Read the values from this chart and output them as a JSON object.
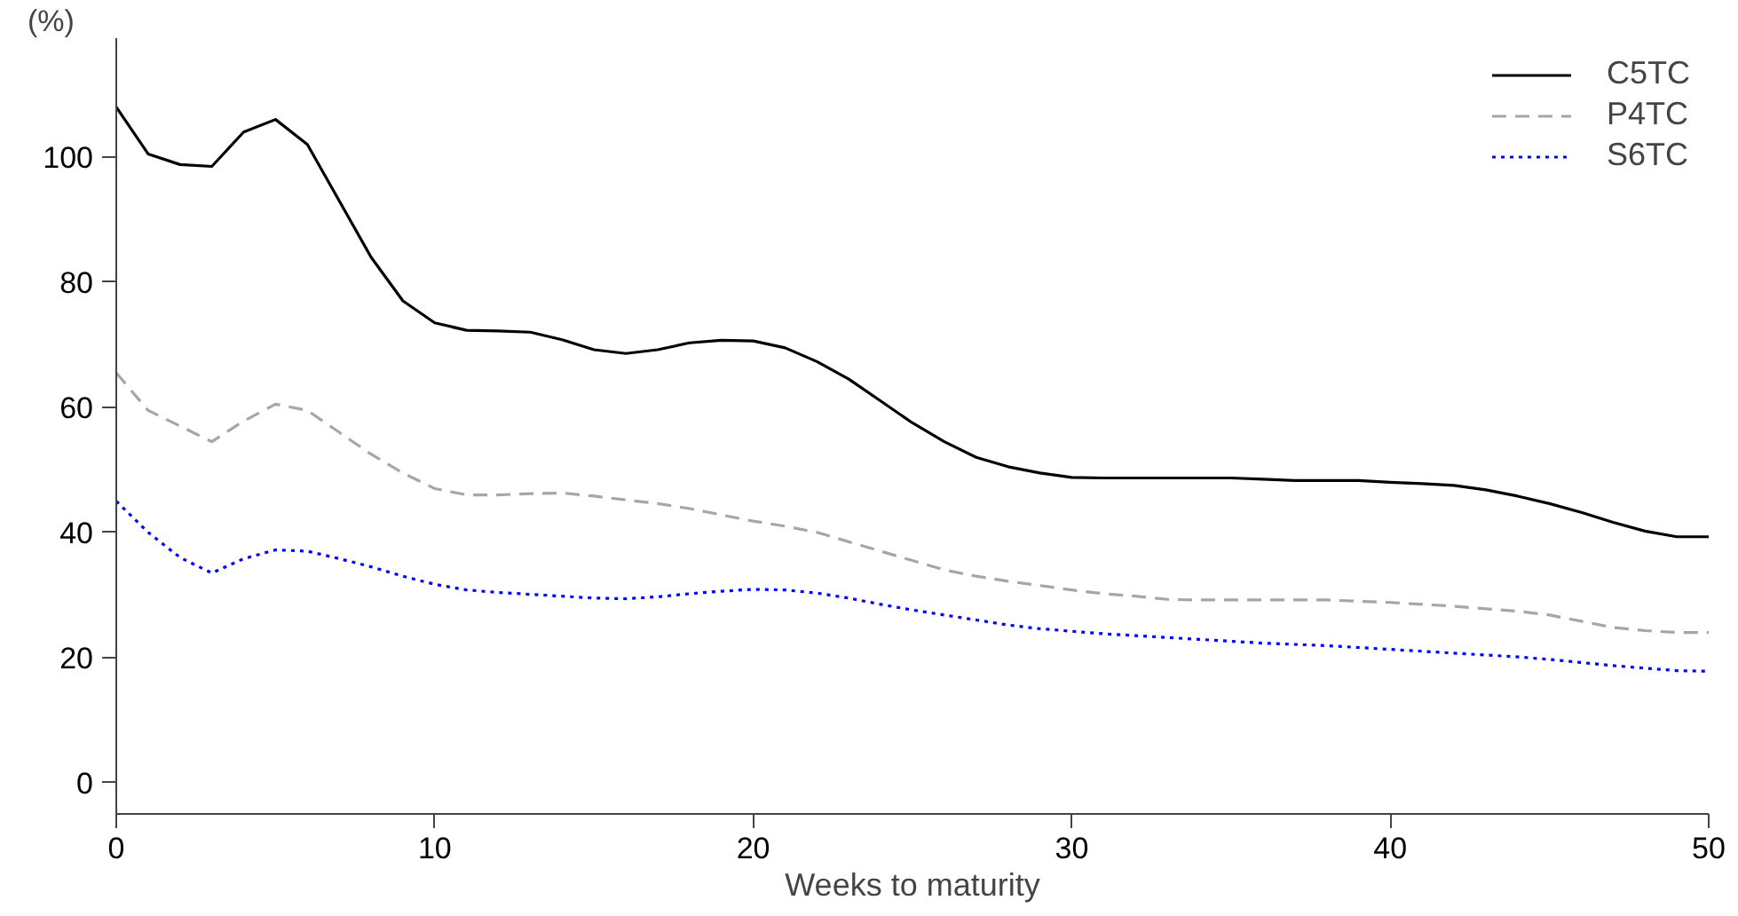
{
  "chart_data": {
    "type": "line",
    "xlabel": "Weeks to maturity",
    "ylabel": "(%)",
    "x": [
      0,
      1,
      2,
      3,
      4,
      5,
      6,
      7,
      8,
      9,
      10,
      11,
      12,
      13,
      14,
      15,
      16,
      17,
      18,
      19,
      20,
      21,
      22,
      23,
      24,
      25,
      26,
      27,
      28,
      29,
      30,
      31,
      32,
      33,
      34,
      35,
      36,
      37,
      38,
      39,
      40,
      41,
      42,
      43,
      44,
      45,
      46,
      47,
      48,
      49,
      50
    ],
    "series": [
      {
        "name": "C5TC",
        "color": "#000000",
        "line_style": "solid",
        "values": [
          108,
          100.5,
          98.8,
          98.5,
          104,
          106,
          102,
          93,
          84,
          77,
          73.5,
          72.3,
          72.2,
          72,
          70.8,
          69.2,
          68.6,
          69.2,
          70.3,
          70.7,
          70.6,
          69.5,
          67.3,
          64.5,
          61,
          57.5,
          54.5,
          52,
          50.5,
          49.5,
          48.8,
          48.7,
          48.7,
          48.7,
          48.7,
          48.7,
          48.5,
          48.3,
          48.3,
          48.3,
          48,
          47.8,
          47.5,
          46.8,
          45.8,
          44.6,
          43.2,
          41.6,
          40.2,
          39.3,
          39.3
        ]
      },
      {
        "name": "P4TC",
        "color": "#a6a6a6",
        "line_style": "dashed",
        "values": [
          65.5,
          59.5,
          57,
          54.5,
          57.8,
          60.5,
          59.5,
          56,
          52.5,
          49.5,
          47,
          46,
          46,
          46.2,
          46.3,
          45.8,
          45.2,
          44.6,
          43.8,
          42.8,
          41.8,
          41,
          40,
          38.5,
          37,
          35.5,
          34,
          33,
          32.2,
          31.5,
          30.8,
          30.2,
          29.8,
          29.3,
          29.2,
          29.2,
          29.2,
          29.2,
          29.2,
          29,
          28.8,
          28.5,
          28.2,
          27.8,
          27.4,
          26.8,
          25.8,
          24.8,
          24.3,
          24,
          24
        ]
      },
      {
        "name": "S6TC",
        "color": "#0000ff",
        "line_style": "dotted",
        "values": [
          45,
          40,
          36,
          33.5,
          35.8,
          37.2,
          37,
          35.8,
          34.5,
          33,
          31.7,
          30.8,
          30.4,
          30.1,
          29.8,
          29.5,
          29.4,
          29.7,
          30.2,
          30.6,
          30.9,
          30.8,
          30.3,
          29.5,
          28.5,
          27.6,
          26.8,
          26,
          25.2,
          24.6,
          24.2,
          23.8,
          23.5,
          23.2,
          22.9,
          22.6,
          22.3,
          22.1,
          21.9,
          21.6,
          21.3,
          21,
          20.7,
          20.4,
          20.1,
          19.7,
          19.2,
          18.7,
          18.3,
          17.9,
          17.8
        ]
      }
    ],
    "xlim": [
      0,
      50
    ],
    "xticks": [
      0,
      10,
      20,
      30,
      40,
      50
    ],
    "ylim": [
      -5,
      119
    ],
    "yticks": [
      0,
      20,
      40,
      60,
      80,
      100
    ],
    "grid": false,
    "legend": "top right"
  }
}
